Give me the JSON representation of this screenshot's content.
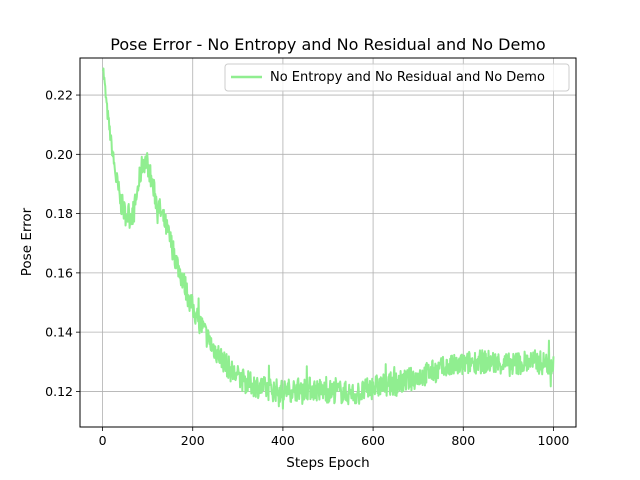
{
  "chart_data": {
    "type": "line",
    "title": "Pose Error - No Entropy and No Residual and No Demo",
    "xlabel": "Steps Epoch",
    "ylabel": "Pose Error",
    "xlim": [
      -50,
      1050
    ],
    "ylim": [
      0.108,
      0.2325
    ],
    "xticks": [
      0,
      200,
      400,
      600,
      800,
      1000
    ],
    "yticks": [
      0.12,
      0.14,
      0.16,
      0.18,
      0.2,
      0.22
    ],
    "ytick_labels": [
      "0.12",
      "0.14",
      "0.16",
      "0.18",
      "0.20",
      "0.22"
    ],
    "grid": true,
    "legend_position": "upper right",
    "series": [
      {
        "name": "No Entropy and No Residual and No Demo",
        "color": "#90ee90",
        "x": [
          0,
          10,
          20,
          30,
          40,
          50,
          60,
          70,
          80,
          90,
          100,
          110,
          120,
          130,
          140,
          150,
          160,
          170,
          180,
          190,
          200,
          210,
          220,
          230,
          240,
          250,
          260,
          270,
          280,
          290,
          300,
          320,
          340,
          360,
          380,
          400,
          420,
          440,
          460,
          480,
          500,
          520,
          540,
          560,
          580,
          600,
          620,
          640,
          660,
          680,
          700,
          720,
          740,
          760,
          780,
          800,
          820,
          840,
          860,
          880,
          900,
          920,
          940,
          960,
          980,
          1000
        ],
        "y": [
          0.231,
          0.215,
          0.203,
          0.192,
          0.184,
          0.18,
          0.179,
          0.181,
          0.19,
          0.198,
          0.197,
          0.19,
          0.184,
          0.18,
          0.176,
          0.171,
          0.166,
          0.161,
          0.157,
          0.152,
          0.148,
          0.145,
          0.142,
          0.139,
          0.136,
          0.134,
          0.132,
          0.13,
          0.128,
          0.126,
          0.125,
          0.123,
          0.122,
          0.121,
          0.1205,
          0.12,
          0.1205,
          0.121,
          0.121,
          0.1205,
          0.12,
          0.12,
          0.1195,
          0.119,
          0.12,
          0.1215,
          0.122,
          0.1225,
          0.123,
          0.124,
          0.125,
          0.126,
          0.127,
          0.128,
          0.1285,
          0.129,
          0.13,
          0.13,
          0.13,
          0.1295,
          0.129,
          0.1295,
          0.13,
          0.13,
          0.1295,
          0.129
        ]
      }
    ]
  }
}
